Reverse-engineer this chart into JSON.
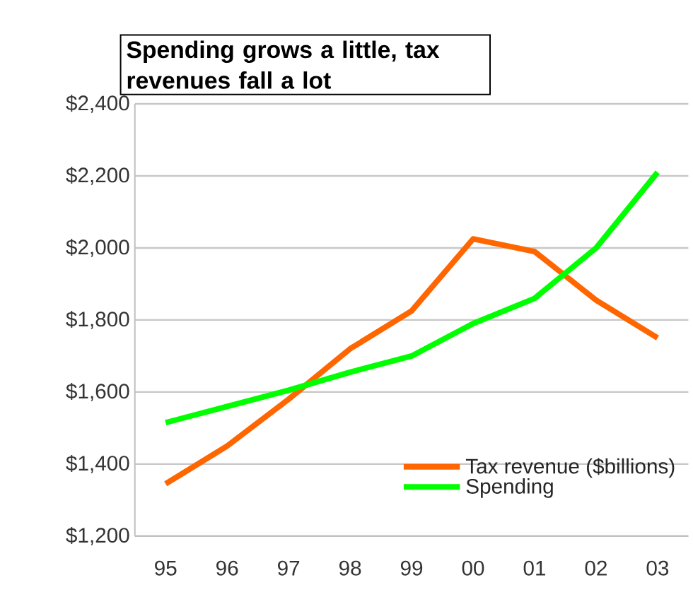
{
  "chart_data": {
    "type": "line",
    "title": "Spending grows a little, tax revenues fall a lot",
    "categories": [
      "95",
      "96",
      "97",
      "98",
      "99",
      "00",
      "01",
      "02",
      "03"
    ],
    "series": [
      {
        "name": "Tax revenue ($billions)",
        "color": "#ff6600",
        "values": [
          1345,
          1450,
          1580,
          1720,
          1825,
          2025,
          1990,
          1855,
          1750
        ]
      },
      {
        "name": "Spending",
        "color": "#00ff00",
        "values": [
          1515,
          1560,
          1605,
          1655,
          1700,
          1790,
          1860,
          2000,
          2210
        ]
      }
    ],
    "ylim": [
      1200,
      2400
    ],
    "yticks": [
      {
        "value": 1200,
        "label": "$1,200"
      },
      {
        "value": 1400,
        "label": "$1,400"
      },
      {
        "value": 1600,
        "label": "$1,600"
      },
      {
        "value": 1800,
        "label": "$1,800"
      },
      {
        "value": 2000,
        "label": "$2,000"
      },
      {
        "value": 2200,
        "label": "$2,200"
      },
      {
        "value": 2400,
        "label": "$2,400"
      }
    ],
    "grid": "y",
    "legend": "bottom right",
    "marker": "none",
    "line_style": "solid"
  }
}
